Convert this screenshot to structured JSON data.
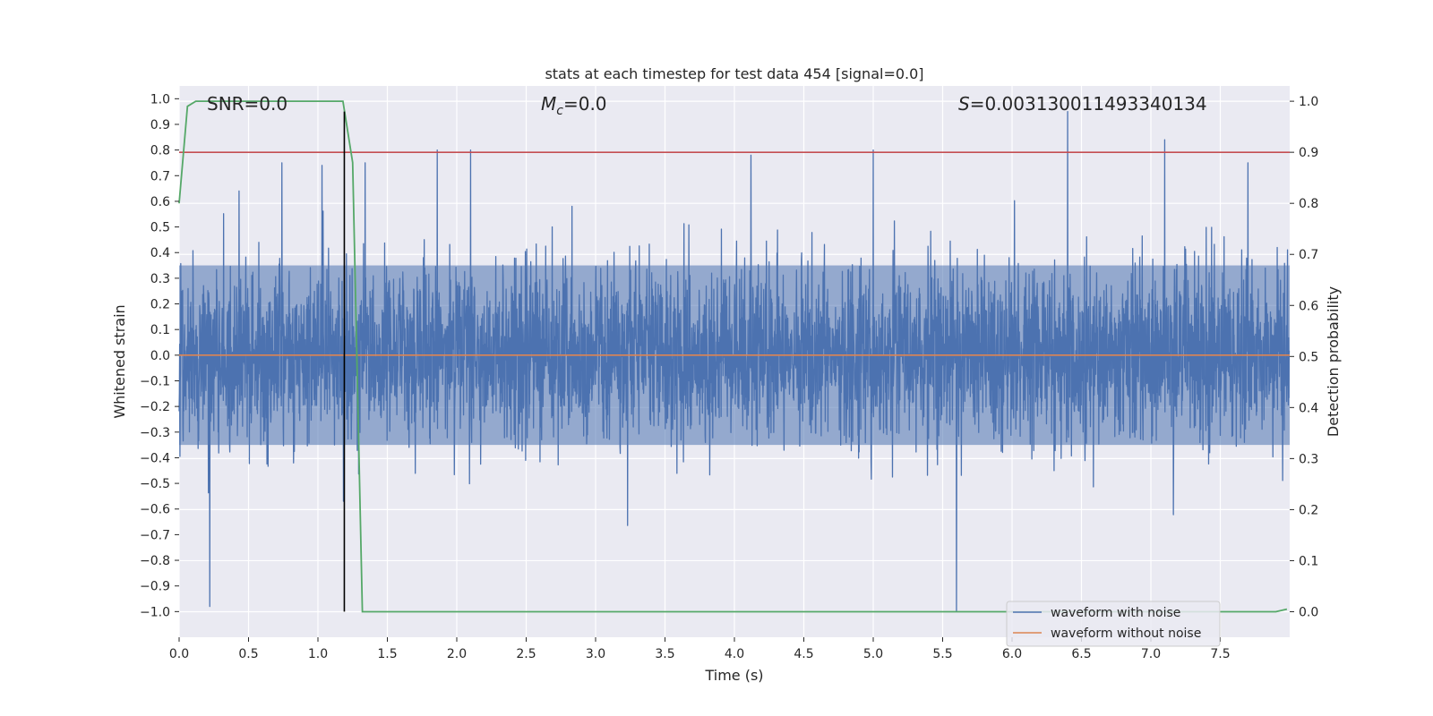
{
  "chart_data": {
    "type": "line",
    "title": "stats at each timestep for test data 454 [signal=0.0]",
    "xlabel": "Time (s)",
    "ylabel": "Whitened strain",
    "y2label": "Detection probability",
    "xlim": [
      0.0,
      8.0
    ],
    "ylim": [
      -1.1,
      1.05
    ],
    "y2lim": [
      -0.05,
      1.03
    ],
    "xticks": [
      "0.0",
      "0.5",
      "1.0",
      "1.5",
      "2.0",
      "2.5",
      "3.0",
      "3.5",
      "4.0",
      "4.5",
      "5.0",
      "5.5",
      "6.0",
      "6.5",
      "7.0",
      "7.5"
    ],
    "yticks": [
      "1.0",
      "0.9",
      "0.8",
      "0.7",
      "0.6",
      "0.5",
      "0.4",
      "0.3",
      "0.2",
      "0.1",
      "0.0",
      "−0.1",
      "−0.2",
      "−0.3",
      "−0.4",
      "−0.5",
      "−0.6",
      "−0.7",
      "−0.8",
      "−0.9",
      "−1.0"
    ],
    "y2ticks": [
      "1.0",
      "0.9",
      "0.8",
      "0.7",
      "0.6",
      "0.5",
      "0.4",
      "0.3",
      "0.2",
      "0.1",
      "0.0"
    ],
    "grid": true,
    "legend_position": "bottom-right",
    "annotations": {
      "snr": "SNR=0.0",
      "mc_symbol": "M",
      "mc_sub": "c",
      "mc_value": "=0.0",
      "s_symbol": "S",
      "s_value": "=0.003130011493340134"
    },
    "series": [
      {
        "name": "waveform with noise",
        "color": "#4c72b0",
        "axis": "left",
        "description_points": {
          "typical_range": [
            -0.35,
            0.35
          ],
          "spikes": [
            {
              "x": 0.22,
              "y": -0.98
            },
            {
              "x": 0.74,
              "y": 0.75
            },
            {
              "x": 1.03,
              "y": 0.74
            },
            {
              "x": 1.34,
              "y": 0.75
            },
            {
              "x": 1.86,
              "y": 0.8
            },
            {
              "x": 2.1,
              "y": 0.8
            },
            {
              "x": 4.12,
              "y": 0.78
            },
            {
              "x": 5.0,
              "y": 0.8
            },
            {
              "x": 5.6,
              "y": -1.0
            },
            {
              "x": 6.4,
              "y": 0.95
            },
            {
              "x": 7.1,
              "y": 0.84
            },
            {
              "x": 7.7,
              "y": 0.75
            }
          ]
        }
      },
      {
        "name": "waveform without noise",
        "color": "#dd8452",
        "axis": "left",
        "x": [
          0.0,
          8.0
        ],
        "y": [
          0.0,
          0.0
        ]
      },
      {
        "color": "#55a868",
        "axis": "right",
        "x": [
          0.0,
          0.06,
          0.12,
          1.18,
          1.25,
          1.32,
          2.0,
          7.8,
          7.9,
          7.98
        ],
        "y": [
          0.8,
          0.99,
          1.0,
          1.0,
          0.88,
          0.0,
          0.0,
          0.0,
          0.0,
          0.005
        ]
      }
    ],
    "threshold": {
      "axis": "right",
      "y": 0.9,
      "color": "#c44e52"
    },
    "vline": {
      "x": 1.19,
      "ymin": -1.0,
      "ymax": 0.95,
      "color": "#000000"
    }
  }
}
